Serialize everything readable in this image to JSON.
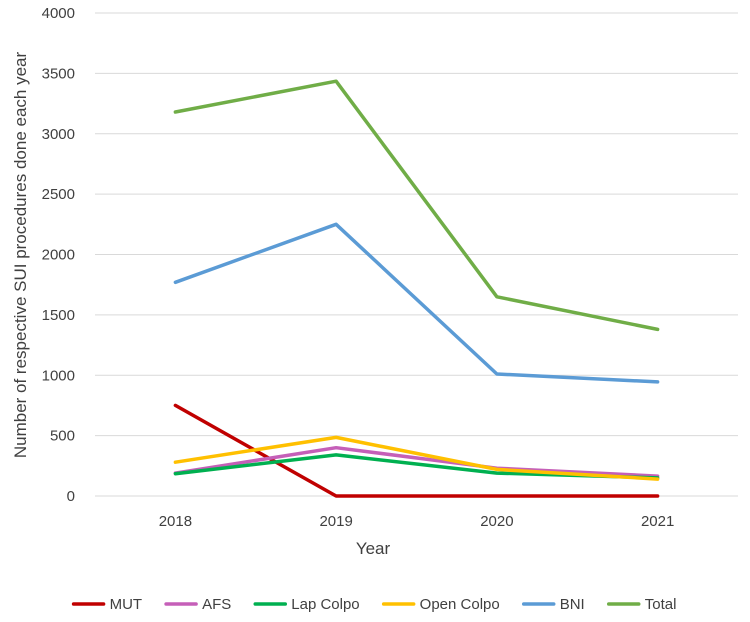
{
  "chart_data": {
    "type": "line",
    "title": "",
    "xlabel": "Year",
    "ylabel": "Number of respective SUI procedures done each year",
    "categories": [
      "2018",
      "2019",
      "2020",
      "2021"
    ],
    "ylim": [
      0,
      4000
    ],
    "yticks": [
      0,
      500,
      1000,
      1500,
      2000,
      2500,
      3000,
      3500,
      4000
    ],
    "grid": true,
    "legend_position": "bottom",
    "series": [
      {
        "name": "MUT",
        "color": "#c00000",
        "values": [
          750,
          0,
          0,
          0
        ]
      },
      {
        "name": "AFS",
        "color": "#c55fb8",
        "values": [
          190,
          400,
          230,
          165
        ]
      },
      {
        "name": "Lap Colpo",
        "color": "#00b050",
        "values": [
          185,
          340,
          190,
          150
        ]
      },
      {
        "name": "Open Colpo",
        "color": "#ffc000",
        "values": [
          280,
          485,
          220,
          140
        ]
      },
      {
        "name": "BNI",
        "color": "#5b9bd5",
        "values": [
          1770,
          2250,
          1010,
          945
        ]
      },
      {
        "name": "Total",
        "color": "#70ad47",
        "values": [
          3180,
          3435,
          1650,
          1380
        ]
      }
    ]
  }
}
